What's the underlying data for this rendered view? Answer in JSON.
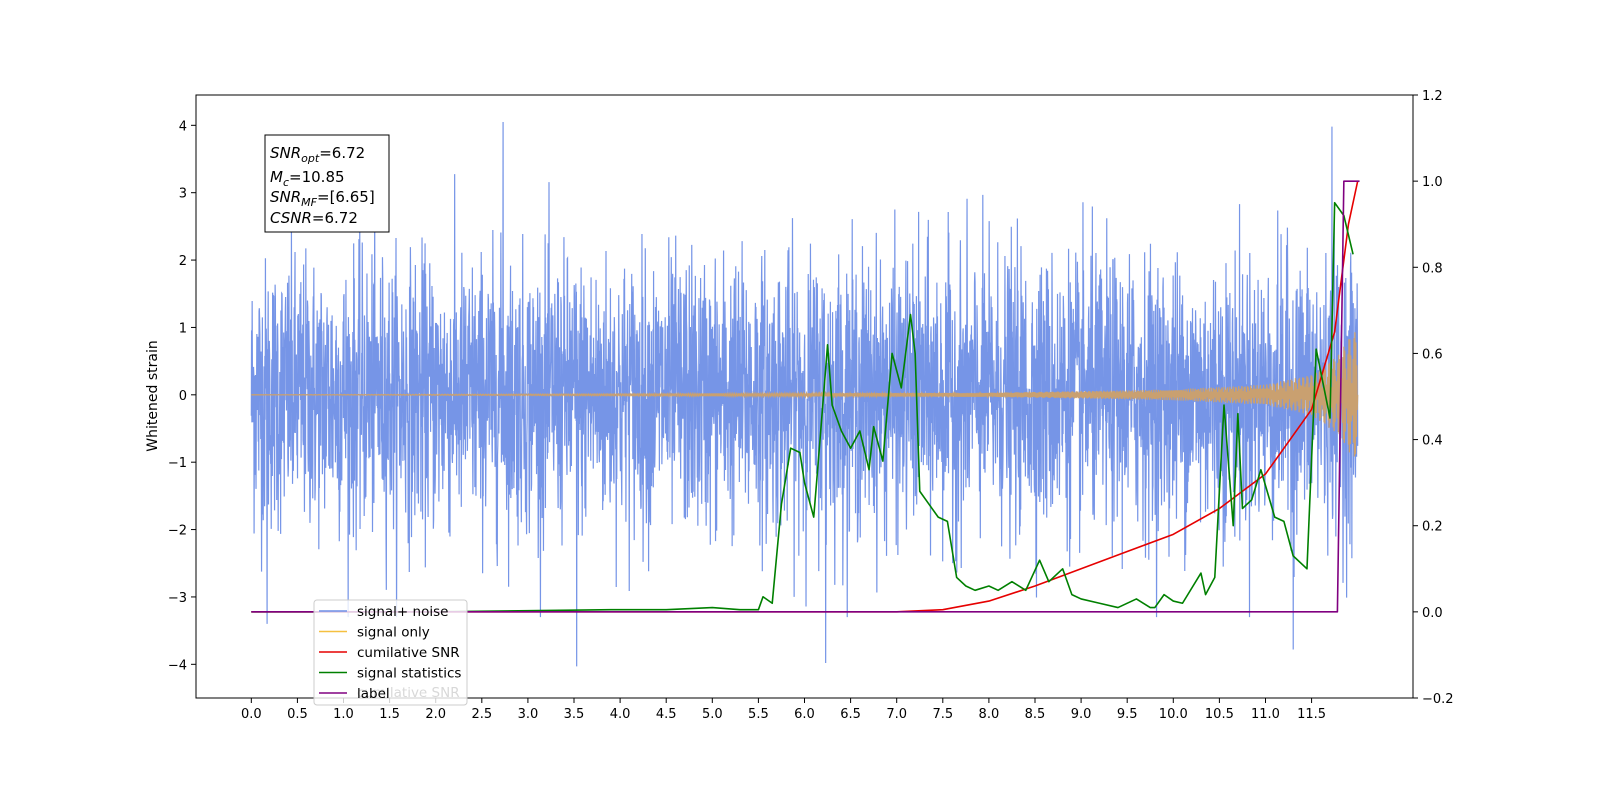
{
  "chart_data": {
    "type": "line",
    "title": "",
    "xlabel": "",
    "ylabel": "Whitened strain",
    "xlim": [
      -0.6,
      12.6
    ],
    "ylim": [
      -4.5,
      4.45
    ],
    "y2lim": [
      -0.2,
      1.2
    ],
    "x_ticks": [
      "0.0",
      "0.5",
      "1.0",
      "1.5",
      "2.0",
      "2.5",
      "3.0",
      "3.5",
      "4.0",
      "4.5",
      "5.0",
      "5.5",
      "6.0",
      "6.5",
      "7.0",
      "7.5",
      "8.0",
      "8.5",
      "9.0",
      "9.5",
      "10.0",
      "10.5",
      "11.0",
      "11.5"
    ],
    "y_ticks": [
      "−4",
      "−3",
      "−2",
      "−1",
      "0",
      "1",
      "2",
      "3",
      "4"
    ],
    "y2_ticks": [
      "−0.2",
      "0.0",
      "0.2",
      "0.4",
      "0.6",
      "0.8",
      "1.0",
      "1.2"
    ],
    "grid": false,
    "legend_position": "lower-left",
    "info_box": {
      "snr_opt": {
        "base": "SNR",
        "sub": "opt",
        "value": "=6.72"
      },
      "mc": {
        "base": "M",
        "sub": "c",
        "value": "=10.85"
      },
      "snr_mf": {
        "base": "SNR",
        "sub": "MF",
        "value": "=[6.65]"
      },
      "csnr": {
        "base": "CSNR",
        "value": "=6.72"
      }
    },
    "series": [
      {
        "name": "signal+ noise",
        "color": "#6f8fe6",
        "axis": "left",
        "x_range": [
          0.0,
          12.0
        ],
        "noise_sigma": 1.0,
        "peaks": [
          [
            2.73,
            4.05
          ],
          [
            11.72,
            3.98
          ],
          [
            3.53,
            -4.03
          ],
          [
            6.23,
            -3.98
          ],
          [
            11.3,
            -3.78
          ],
          [
            0.17,
            -3.4
          ]
        ]
      },
      {
        "name": "signal only",
        "color": "#f5a623",
        "axis": "left",
        "x_range": [
          0.0,
          12.0
        ],
        "amplitude_envelope": [
          [
            0.0,
            0.0
          ],
          [
            8.0,
            0.03
          ],
          [
            10.0,
            0.08
          ],
          [
            11.0,
            0.15
          ],
          [
            11.5,
            0.3
          ],
          [
            11.8,
            0.6
          ],
          [
            11.95,
            0.95
          ],
          [
            12.0,
            0.9
          ]
        ]
      },
      {
        "name": "cumilative SNR",
        "color": "#e60000",
        "axis": "right",
        "x": [
          0.0,
          6.0,
          7.0,
          7.5,
          8.0,
          8.5,
          9.0,
          9.5,
          10.0,
          10.5,
          11.0,
          11.5,
          11.75,
          11.9,
          12.0
        ],
        "y": [
          0.0,
          0.0,
          0.0,
          0.005,
          0.025,
          0.06,
          0.1,
          0.14,
          0.18,
          0.24,
          0.32,
          0.47,
          0.65,
          0.9,
          1.0
        ]
      },
      {
        "name": "signal statistics",
        "color": "#008000",
        "axis": "right",
        "x": [
          0.0,
          2.0,
          3.9,
          4.5,
          5.0,
          5.3,
          5.5,
          5.55,
          5.65,
          5.75,
          5.85,
          5.95,
          6.0,
          6.1,
          6.15,
          6.25,
          6.3,
          6.4,
          6.5,
          6.6,
          6.7,
          6.75,
          6.85,
          6.95,
          7.05,
          7.15,
          7.2,
          7.25,
          7.35,
          7.45,
          7.55,
          7.65,
          7.75,
          7.85,
          8.0,
          8.1,
          8.25,
          8.4,
          8.55,
          8.65,
          8.8,
          8.9,
          9.0,
          9.2,
          9.4,
          9.6,
          9.75,
          9.8,
          9.9,
          10.0,
          10.1,
          10.3,
          10.35,
          10.45,
          10.55,
          10.65,
          10.7,
          10.75,
          10.85,
          10.95,
          11.1,
          11.2,
          11.3,
          11.45,
          11.55,
          11.7,
          11.75,
          11.85,
          11.95
        ],
        "y": [
          0.0,
          0.0,
          0.005,
          0.005,
          0.01,
          0.005,
          0.005,
          0.035,
          0.02,
          0.25,
          0.38,
          0.37,
          0.3,
          0.22,
          0.35,
          0.62,
          0.48,
          0.42,
          0.38,
          0.42,
          0.33,
          0.43,
          0.35,
          0.6,
          0.52,
          0.69,
          0.6,
          0.28,
          0.25,
          0.22,
          0.21,
          0.08,
          0.06,
          0.05,
          0.06,
          0.05,
          0.07,
          0.05,
          0.12,
          0.07,
          0.1,
          0.04,
          0.03,
          0.02,
          0.01,
          0.03,
          0.01,
          0.01,
          0.04,
          0.025,
          0.02,
          0.09,
          0.04,
          0.08,
          0.48,
          0.2,
          0.46,
          0.24,
          0.26,
          0.33,
          0.22,
          0.21,
          0.13,
          0.1,
          0.61,
          0.45,
          0.95,
          0.92,
          0.83
        ]
      },
      {
        "name": "label",
        "color": "#800080",
        "axis": "right",
        "x": [
          0.0,
          11.78,
          11.85,
          12.02
        ],
        "y": [
          0.0,
          0.0,
          1.0,
          1.0
        ]
      }
    ],
    "legend_entries": [
      {
        "name": "signal+ noise",
        "color": "#6f8fe6"
      },
      {
        "name": "signal only",
        "color": "#f5c040"
      },
      {
        "name": "cumilative SNR",
        "color": "#e60000"
      },
      {
        "name": "signal statistics",
        "color": "#008000"
      },
      {
        "name": "label",
        "color": "#800080"
      }
    ],
    "legend_ghost_text": "cumilative SNR"
  }
}
